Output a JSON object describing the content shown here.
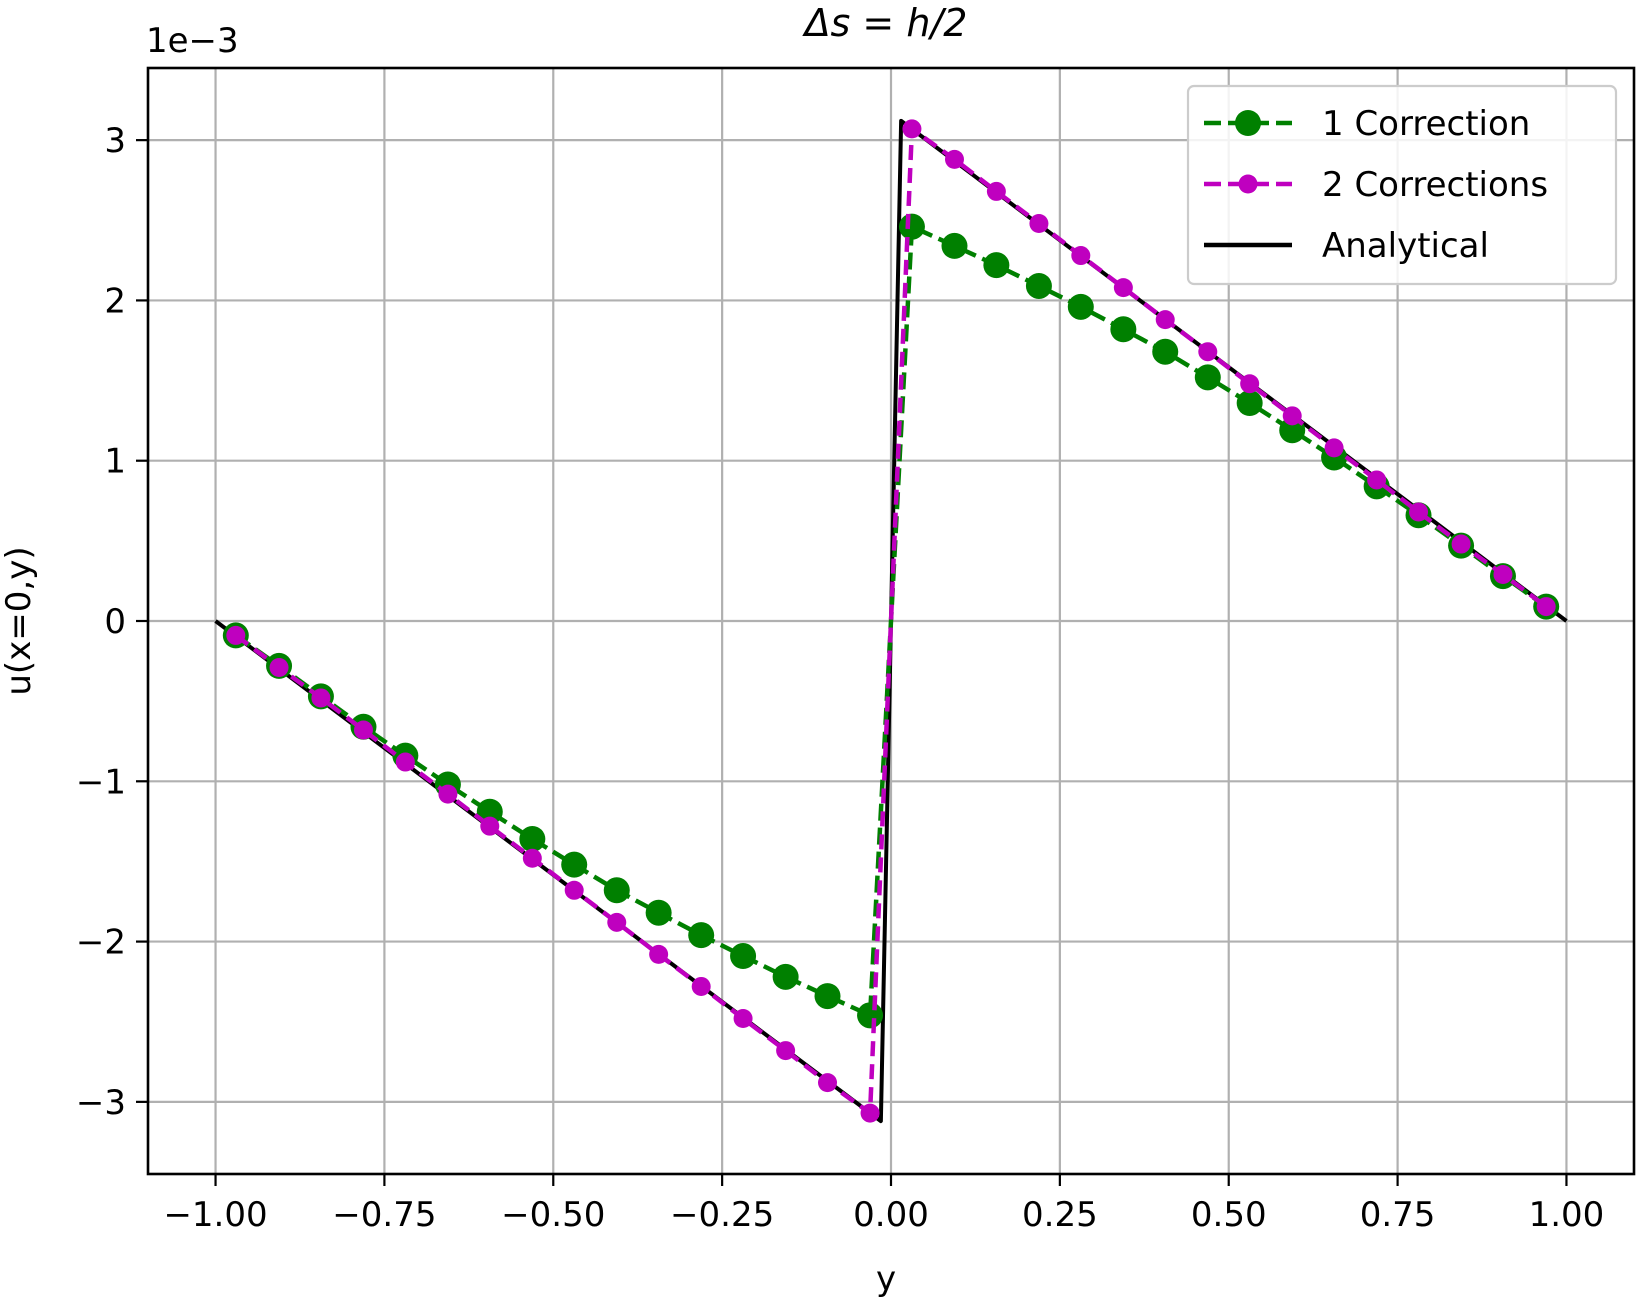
{
  "chart_data": {
    "type": "line",
    "title": "Δs = h/2",
    "xlabel": "y",
    "ylabel": "u(x=0,y)",
    "y_scale_label": "1e−3",
    "xlim": [
      -1.1,
      1.1
    ],
    "ylim": [
      -3.45,
      3.45
    ],
    "x_ticks": [
      -1.0,
      -0.75,
      -0.5,
      -0.25,
      0.0,
      0.25,
      0.5,
      0.75,
      1.0
    ],
    "x_tick_labels": [
      "−1.00",
      "−0.75",
      "−0.50",
      "−0.25",
      "0.00",
      "0.25",
      "0.50",
      "0.75",
      "1.00"
    ],
    "y_ticks": [
      -3,
      -2,
      -1,
      0,
      1,
      2,
      3
    ],
    "y_tick_labels": [
      "−3",
      "−2",
      "−1",
      "0",
      "1",
      "2",
      "3"
    ],
    "grid": true,
    "legend_position": "top-right",
    "series": [
      {
        "name": "1 Correction",
        "color": "#008000",
        "style": "dashed-circle-large",
        "x": [
          -0.97,
          -0.906,
          -0.844,
          -0.781,
          -0.719,
          -0.656,
          -0.594,
          -0.531,
          -0.469,
          -0.406,
          -0.344,
          -0.281,
          -0.219,
          -0.156,
          -0.094,
          -0.031,
          0.031,
          0.094,
          0.156,
          0.219,
          0.281,
          0.344,
          0.406,
          0.469,
          0.531,
          0.594,
          0.656,
          0.719,
          0.781,
          0.844,
          0.906,
          0.97
        ],
        "y": [
          -0.09,
          -0.28,
          -0.47,
          -0.66,
          -0.84,
          -1.02,
          -1.19,
          -1.36,
          -1.52,
          -1.68,
          -1.82,
          -1.96,
          -2.09,
          -2.22,
          -2.34,
          -2.46,
          2.46,
          2.34,
          2.22,
          2.09,
          1.96,
          1.82,
          1.68,
          1.52,
          1.36,
          1.19,
          1.02,
          0.84,
          0.66,
          0.47,
          0.28,
          0.09
        ]
      },
      {
        "name": "2 Corrections",
        "color": "#bf00bf",
        "style": "dashed-circle-small",
        "x": [
          -0.97,
          -0.906,
          -0.844,
          -0.781,
          -0.719,
          -0.656,
          -0.594,
          -0.531,
          -0.469,
          -0.406,
          -0.344,
          -0.281,
          -0.219,
          -0.156,
          -0.094,
          -0.031,
          0.031,
          0.094,
          0.156,
          0.219,
          0.281,
          0.344,
          0.406,
          0.469,
          0.531,
          0.594,
          0.656,
          0.719,
          0.781,
          0.844,
          0.906,
          0.97
        ],
        "y": [
          -0.09,
          -0.29,
          -0.48,
          -0.68,
          -0.88,
          -1.08,
          -1.28,
          -1.48,
          -1.68,
          -1.88,
          -2.08,
          -2.28,
          -2.48,
          -2.68,
          -2.88,
          -3.07,
          3.07,
          2.88,
          2.68,
          2.48,
          2.28,
          2.08,
          1.88,
          1.68,
          1.48,
          1.28,
          1.08,
          0.88,
          0.68,
          0.48,
          0.29,
          0.09
        ]
      },
      {
        "name": "Analytical",
        "color": "#000000",
        "style": "solid",
        "x": [
          -1.0,
          -0.015,
          0.015,
          1.0
        ],
        "y": [
          0.0,
          -3.12,
          3.12,
          0.0
        ]
      }
    ]
  }
}
